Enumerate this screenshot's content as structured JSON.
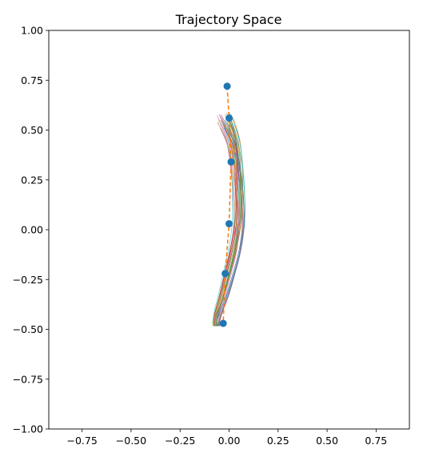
{
  "chart_data": {
    "type": "line",
    "title": "Trajectory Space",
    "xlabel": "",
    "ylabel": "",
    "xlim": [
      -0.92,
      0.92
    ],
    "ylim": [
      -1.0,
      1.0
    ],
    "xticks": [
      -0.75,
      -0.5,
      -0.25,
      0.0,
      0.25,
      0.5,
      0.75
    ],
    "yticks": [
      -1.0,
      -0.75,
      -0.5,
      -0.25,
      0.0,
      0.25,
      0.5,
      0.75,
      1.0
    ],
    "xtick_labels": [
      "−0.75",
      "−0.50",
      "−0.25",
      "0.00",
      "0.25",
      "0.50",
      "0.75"
    ],
    "ytick_labels": [
      "−1.00",
      "−0.75",
      "−0.50",
      "−0.25",
      "0.00",
      "0.25",
      "0.50",
      "0.75",
      "1.00"
    ],
    "grid": false,
    "legend": "none",
    "keypoints": {
      "color": "#1f77b4",
      "x": [
        -0.01,
        0.0,
        0.01,
        0.0,
        -0.02,
        -0.03
      ],
      "y": [
        0.72,
        0.56,
        0.34,
        0.03,
        -0.22,
        -0.47
      ]
    },
    "reference_path": {
      "color": "#ff7f0e",
      "style": "dashed",
      "x": [
        -0.01,
        0.0,
        0.01,
        0.0,
        -0.02,
        -0.03
      ],
      "y": [
        0.72,
        0.56,
        0.34,
        0.03,
        -0.22,
        -0.47
      ]
    },
    "sampled_trajectories": {
      "count": 40,
      "colors": [
        "#1f77b4",
        "#ff7f0e",
        "#2ca02c",
        "#d62728",
        "#9467bd",
        "#8c564b",
        "#e377c2",
        "#7f7f7f",
        "#bcbd22",
        "#17becf"
      ],
      "base_curve": {
        "x": [
          -0.02,
          0.02,
          0.04,
          0.05,
          0.05,
          0.03,
          0.0,
          -0.03,
          -0.06,
          -0.07,
          -0.05
        ],
        "y": [
          0.55,
          0.45,
          0.32,
          0.18,
          0.03,
          -0.1,
          -0.22,
          -0.33,
          -0.42,
          -0.48,
          -0.47
        ]
      }
    }
  }
}
